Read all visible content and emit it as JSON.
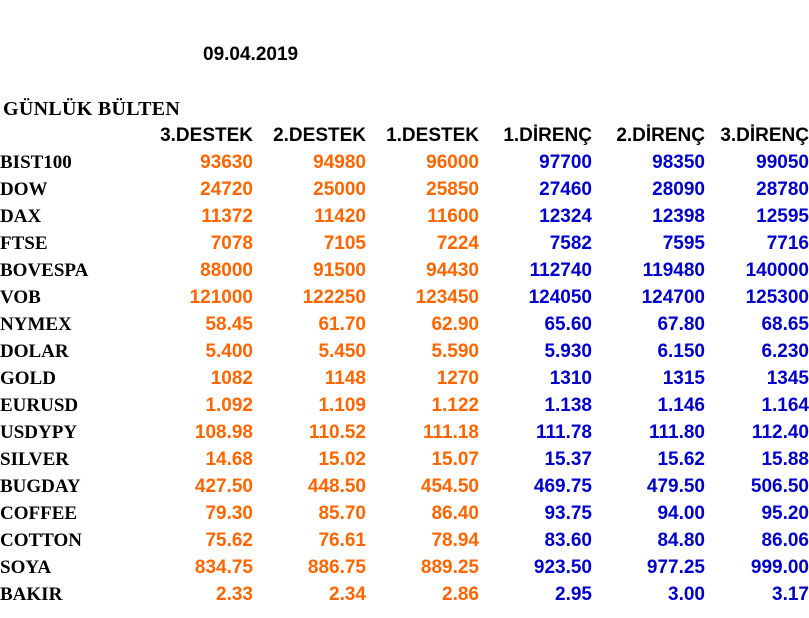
{
  "date": "09.04.2019",
  "title": "GÜNLÜK BÜLTEN",
  "columns": [
    "3.DESTEK",
    "2.DESTEK",
    "1.DESTEK",
    "1.DİRENÇ",
    "2.DİRENÇ",
    "3.DİRENÇ"
  ],
  "colors": {
    "support": "#ff6600",
    "resistance": "#0000cc",
    "label": "#000000"
  },
  "rows": [
    {
      "name": "BIST100",
      "values": [
        "93630",
        "94980",
        "96000",
        "97700",
        "98350",
        "99050"
      ]
    },
    {
      "name": "DOW",
      "values": [
        "24720",
        "25000",
        "25850",
        "27460",
        "28090",
        "28780"
      ]
    },
    {
      "name": "DAX",
      "values": [
        "11372",
        "11420",
        "11600",
        "12324",
        "12398",
        "12595"
      ]
    },
    {
      "name": "FTSE",
      "values": [
        "7078",
        "7105",
        "7224",
        "7582",
        "7595",
        "7716"
      ]
    },
    {
      "name": "BOVESPA",
      "values": [
        "88000",
        "91500",
        "94430",
        "112740",
        "119480",
        "140000"
      ]
    },
    {
      "name": "VOB",
      "values": [
        "121000",
        "122250",
        "123450",
        "124050",
        "124700",
        "125300"
      ]
    },
    {
      "name": "NYMEX",
      "values": [
        "58.45",
        "61.70",
        "62.90",
        "65.60",
        "67.80",
        "68.65"
      ]
    },
    {
      "name": "DOLAR",
      "values": [
        "5.400",
        "5.450",
        "5.590",
        "5.930",
        "6.150",
        "6.230"
      ]
    },
    {
      "name": "GOLD",
      "values": [
        "1082",
        "1148",
        "1270",
        "1310",
        "1315",
        "1345"
      ]
    },
    {
      "name": "EURUSD",
      "values": [
        "1.092",
        "1.109",
        "1.122",
        "1.138",
        "1.146",
        "1.164"
      ]
    },
    {
      "name": "USDYPY",
      "values": [
        "108.98",
        "110.52",
        "111.18",
        "111.78",
        "111.80",
        "112.40"
      ]
    },
    {
      "name": "SILVER",
      "values": [
        "14.68",
        "15.02",
        "15.07",
        "15.37",
        "15.62",
        "15.88"
      ]
    },
    {
      "name": "BUGDAY",
      "values": [
        "427.50",
        "448.50",
        "454.50",
        "469.75",
        "479.50",
        "506.50"
      ]
    },
    {
      "name": "COFFEE",
      "values": [
        "79.30",
        "85.70",
        "86.40",
        "93.75",
        "94.00",
        "95.20"
      ]
    },
    {
      "name": "COTTON",
      "values": [
        "75.62",
        "76.61",
        "78.94",
        "83.60",
        "84.80",
        "86.06"
      ]
    },
    {
      "name": "SOYA",
      "values": [
        "834.75",
        "886.75",
        "889.25",
        "923.50",
        "977.25",
        "999.00"
      ]
    },
    {
      "name": "BAKIR",
      "values": [
        "2.33",
        "2.34",
        "2.86",
        "2.95",
        "3.00",
        "3.17"
      ]
    }
  ]
}
